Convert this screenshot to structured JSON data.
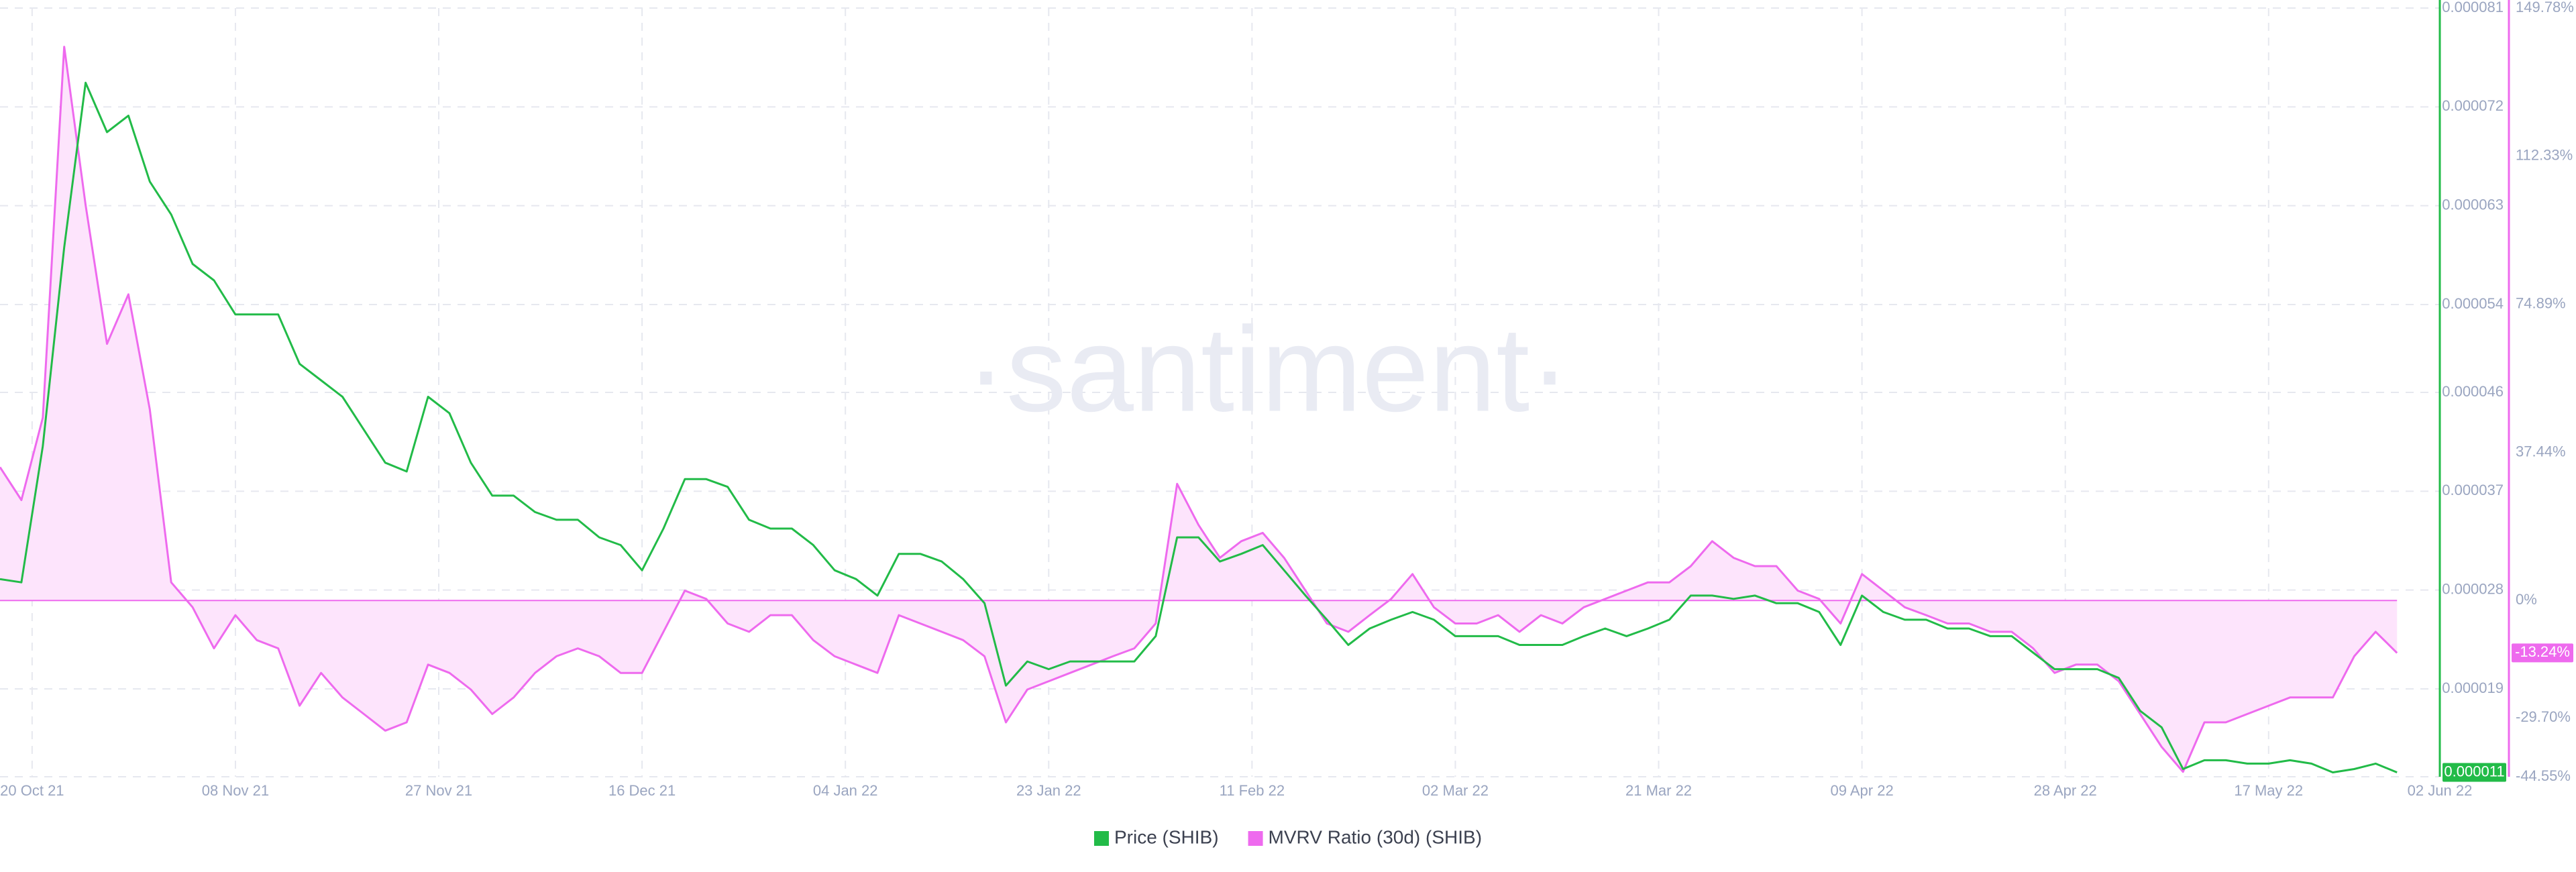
{
  "chart_data": {
    "type": "line",
    "watermark": "·santiment·",
    "legend": "bottom",
    "grid": true,
    "x": [
      "2021-10-17",
      "2021-10-19",
      "2021-10-21",
      "2021-10-23",
      "2021-10-25",
      "2021-10-27",
      "2021-10-29",
      "2021-10-31",
      "2021-11-02",
      "2021-11-04",
      "2021-11-06",
      "2021-11-08",
      "2021-11-10",
      "2021-11-12",
      "2021-11-14",
      "2021-11-16",
      "2021-11-18",
      "2021-11-20",
      "2021-11-22",
      "2021-11-24",
      "2021-11-26",
      "2021-11-28",
      "2021-11-30",
      "2021-12-02",
      "2021-12-04",
      "2021-12-06",
      "2021-12-08",
      "2021-12-10",
      "2021-12-12",
      "2021-12-14",
      "2021-12-16",
      "2021-12-18",
      "2021-12-20",
      "2021-12-22",
      "2021-12-24",
      "2021-12-26",
      "2021-12-28",
      "2021-12-30",
      "2022-01-01",
      "2022-01-03",
      "2022-01-05",
      "2022-01-07",
      "2022-01-09",
      "2022-01-11",
      "2022-01-13",
      "2022-01-15",
      "2022-01-17",
      "2022-01-19",
      "2022-01-21",
      "2022-01-23",
      "2022-01-25",
      "2022-01-27",
      "2022-01-29",
      "2022-01-31",
      "2022-02-02",
      "2022-02-04",
      "2022-02-06",
      "2022-02-08",
      "2022-02-10",
      "2022-02-12",
      "2022-02-14",
      "2022-02-16",
      "2022-02-18",
      "2022-02-20",
      "2022-02-22",
      "2022-02-24",
      "2022-02-26",
      "2022-02-28",
      "2022-03-02",
      "2022-03-04",
      "2022-03-06",
      "2022-03-08",
      "2022-03-10",
      "2022-03-12",
      "2022-03-14",
      "2022-03-16",
      "2022-03-18",
      "2022-03-20",
      "2022-03-22",
      "2022-03-24",
      "2022-03-26",
      "2022-03-28",
      "2022-03-30",
      "2022-04-01",
      "2022-04-03",
      "2022-04-05",
      "2022-04-07",
      "2022-04-09",
      "2022-04-11",
      "2022-04-13",
      "2022-04-15",
      "2022-04-17",
      "2022-04-19",
      "2022-04-21",
      "2022-04-23",
      "2022-04-25",
      "2022-04-27",
      "2022-04-29",
      "2022-05-01",
      "2022-05-03",
      "2022-05-05",
      "2022-05-07",
      "2022-05-09",
      "2022-05-11",
      "2022-05-13",
      "2022-05-15",
      "2022-05-17",
      "2022-05-19",
      "2022-05-21",
      "2022-05-23",
      "2022-05-25",
      "2022-05-27",
      "2022-05-29"
    ],
    "xlim": [
      "2021-10-17",
      "2022-06-02"
    ],
    "xticks": [
      {
        "value": "2021-10-20",
        "label": "20 Oct 21"
      },
      {
        "value": "2021-11-08",
        "label": "08 Nov 21"
      },
      {
        "value": "2021-11-27",
        "label": "27 Nov 21"
      },
      {
        "value": "2021-12-16",
        "label": "16 Dec 21"
      },
      {
        "value": "2022-01-04",
        "label": "04 Jan 22"
      },
      {
        "value": "2022-01-23",
        "label": "23 Jan 22"
      },
      {
        "value": "2022-02-11",
        "label": "11 Feb 22"
      },
      {
        "value": "2022-03-02",
        "label": "02 Mar 22"
      },
      {
        "value": "2022-03-21",
        "label": "21 Mar 22"
      },
      {
        "value": "2022-04-09",
        "label": "09 Apr 22"
      },
      {
        "value": "2022-04-28",
        "label": "28 Apr 22"
      },
      {
        "value": "2022-05-17",
        "label": "17 May 22"
      },
      {
        "value": "2022-06-02",
        "label": "02 Jun 22"
      }
    ],
    "ylim": [
      1.1e-05,
      8.1e-05
    ],
    "yticks": [
      8.1e-05,
      7.2e-05,
      6.3e-05,
      5.4e-05,
      4.6e-05,
      3.7e-05,
      2.8e-05,
      1.9e-05,
      1.1e-05
    ],
    "y2lim": [
      -44.55,
      149.78
    ],
    "y2ticks": [
      {
        "value": 149.78,
        "label": "149.78%"
      },
      {
        "value": 112.33,
        "label": "112.33%"
      },
      {
        "value": 74.89,
        "label": "74.89%"
      },
      {
        "value": 37.44,
        "label": "37.44%"
      },
      {
        "value": 0,
        "label": "0%"
      },
      {
        "value": -29.7,
        "label": "-29.70%"
      },
      {
        "value": -44.55,
        "label": "-44.55%"
      }
    ],
    "series": [
      {
        "name": "Price (SHIB)",
        "color": "#22bb48",
        "last_label": "0.000011",
        "values": [
          2.9e-05,
          2.87e-05,
          4.11e-05,
          5.92e-05,
          7.42e-05,
          6.97e-05,
          7.12e-05,
          6.52e-05,
          6.22e-05,
          5.77e-05,
          5.62e-05,
          5.31e-05,
          5.31e-05,
          5.31e-05,
          4.86e-05,
          4.71e-05,
          4.56e-05,
          4.26e-05,
          3.96e-05,
          3.88e-05,
          4.56e-05,
          4.41e-05,
          3.96e-05,
          3.66e-05,
          3.66e-05,
          3.51e-05,
          3.44e-05,
          3.44e-05,
          3.28e-05,
          3.21e-05,
          2.98e-05,
          3.36e-05,
          3.81e-05,
          3.81e-05,
          3.74e-05,
          3.44e-05,
          3.36e-05,
          3.36e-05,
          3.21e-05,
          2.98e-05,
          2.9e-05,
          2.75e-05,
          3.13e-05,
          3.13e-05,
          3.06e-05,
          2.9e-05,
          2.68e-05,
          1.93e-05,
          2.15e-05,
          2.08e-05,
          2.15e-05,
          2.15e-05,
          2.15e-05,
          2.15e-05,
          2.38e-05,
          3.28e-05,
          3.28e-05,
          3.06e-05,
          3.13e-05,
          3.21e-05,
          2.98e-05,
          2.75e-05,
          2.53e-05,
          2.3e-05,
          2.45e-05,
          2.53e-05,
          2.6e-05,
          2.53e-05,
          2.38e-05,
          2.38e-05,
          2.38e-05,
          2.3e-05,
          2.3e-05,
          2.3e-05,
          2.38e-05,
          2.45e-05,
          2.38e-05,
          2.45e-05,
          2.53e-05,
          2.75e-05,
          2.75e-05,
          2.72e-05,
          2.75e-05,
          2.68e-05,
          2.68e-05,
          2.6e-05,
          2.3e-05,
          2.75e-05,
          2.6e-05,
          2.53e-05,
          2.53e-05,
          2.45e-05,
          2.45e-05,
          2.38e-05,
          2.38e-05,
          2.23e-05,
          2.08e-05,
          2.08e-05,
          2.08e-05,
          2e-05,
          1.7e-05,
          1.55e-05,
          1.17e-05,
          1.25e-05,
          1.25e-05,
          1.22e-05,
          1.22e-05,
          1.25e-05,
          1.22e-05,
          1.14e-05,
          1.17e-05,
          1.22e-05,
          1.14e-05
        ]
      },
      {
        "name": "MVRV Ratio (30d) (SHIB)",
        "color": "#ee6aee",
        "fill": "#fde4fc",
        "axis": "y2",
        "last_label": "-13.24%",
        "values": [
          33.7,
          25.4,
          46.2,
          140,
          100,
          64.9,
          77.4,
          48.3,
          4.6,
          -1.7,
          -12.1,
          -3.7,
          -10.0,
          -12.1,
          -26.6,
          -18.3,
          -24.5,
          -28.7,
          -32.9,
          -30.8,
          -16.2,
          -18.3,
          -22.5,
          -28.7,
          -24.5,
          -18.3,
          -14.1,
          -12.1,
          -14.1,
          -18.3,
          -18.3,
          -7.9,
          2.5,
          0.4,
          -5.8,
          -7.9,
          -3.7,
          -3.7,
          -10.0,
          -14.1,
          -16.2,
          -18.3,
          -3.7,
          -5.8,
          -7.9,
          -10.0,
          -14.1,
          -30.8,
          -22.5,
          -20.4,
          -18.3,
          -16.2,
          -14.1,
          -12.1,
          -5.8,
          29.5,
          19.1,
          10.8,
          15.0,
          17.1,
          10.8,
          2.5,
          -5.8,
          -7.9,
          -3.7,
          0.4,
          6.7,
          -1.7,
          -5.8,
          -5.8,
          -3.7,
          -7.9,
          -3.7,
          -5.8,
          -1.7,
          0.4,
          2.5,
          4.6,
          4.6,
          8.7,
          15.0,
          10.8,
          8.7,
          8.7,
          2.5,
          0.4,
          -5.8,
          6.7,
          2.5,
          -1.7,
          -3.7,
          -5.8,
          -5.8,
          -7.9,
          -7.9,
          -12.1,
          -18.3,
          -16.2,
          -16.2,
          -20.4,
          -28.7,
          -37.0,
          -43.3,
          -30.8,
          -30.8,
          -28.7,
          -26.6,
          -24.5,
          -24.5,
          -24.5,
          -14.1,
          -7.9,
          -13.24
        ]
      }
    ]
  }
}
